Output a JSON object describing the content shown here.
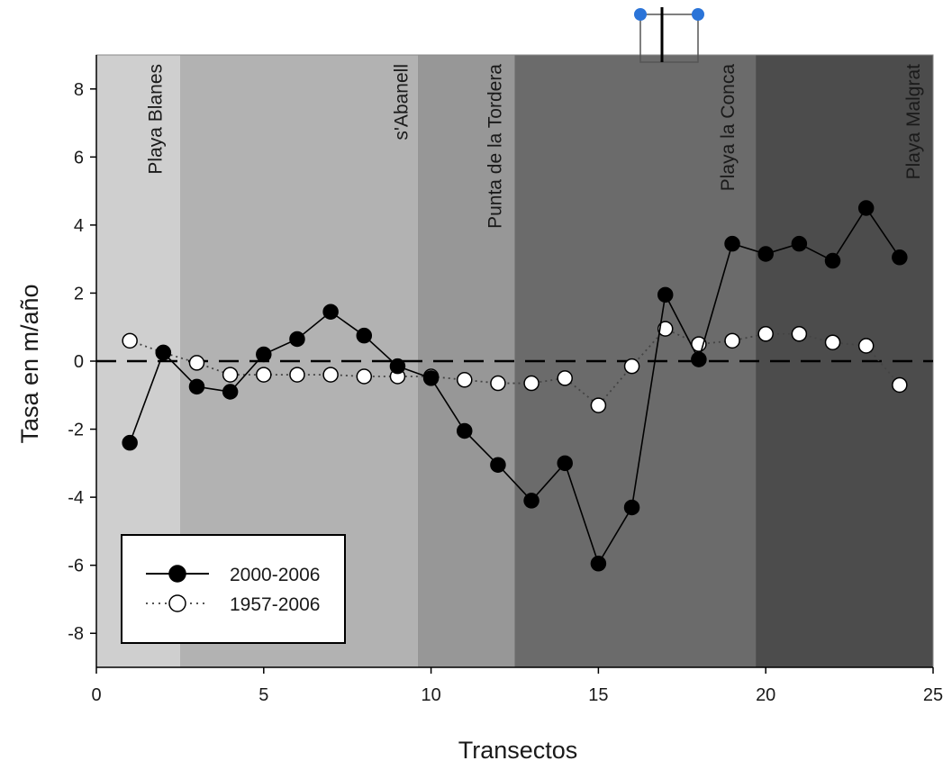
{
  "chart_data": {
    "type": "line",
    "xlabel": "Transectos",
    "ylabel": "Tasa en m/año",
    "xlim": [
      0,
      25
    ],
    "ylim": [
      -9,
      9
    ],
    "x_ticks": [
      0,
      5,
      10,
      15,
      20,
      25
    ],
    "y_ticks": [
      -8,
      -6,
      -4,
      -2,
      0,
      2,
      4,
      6,
      8
    ],
    "reference_line": {
      "y": 0,
      "style": "dashed"
    },
    "legend_position": "bottom-left",
    "zones": [
      {
        "label": "Playa Blanes",
        "from": 0,
        "to": 2.5,
        "color": "#cfcfcf"
      },
      {
        "label": "s'Abanell",
        "from": 2.5,
        "to": 9.6,
        "color": "#b2b2b2"
      },
      {
        "label": "Punta de la Tordera",
        "from": 9.6,
        "to": 12.5,
        "color": "#979797"
      },
      {
        "label": "Playa la Conca",
        "from": 12.5,
        "to": 19.7,
        "color": "#6b6b6b"
      },
      {
        "label": "Playa Malgrat",
        "from": 19.7,
        "to": 25,
        "color": "#4c4c4c"
      }
    ],
    "series": [
      {
        "name": "2000-2006",
        "marker": "filled-circle",
        "line": "solid",
        "x": [
          1,
          2,
          3,
          4,
          5,
          6,
          7,
          8,
          9,
          10,
          11,
          12,
          13,
          14,
          15,
          16,
          17,
          18,
          19,
          20,
          21,
          22,
          23,
          24
        ],
        "y": [
          -2.4,
          0.25,
          -0.75,
          -0.9,
          0.2,
          0.65,
          1.45,
          0.75,
          -0.15,
          -0.5,
          -2.05,
          -3.05,
          -4.1,
          -3.0,
          -5.95,
          -4.3,
          1.95,
          0.05,
          3.45,
          3.15,
          3.45,
          2.95,
          4.5,
          3.05
        ]
      },
      {
        "name": "1957-2006",
        "marker": "open-circle",
        "line": "dotted",
        "x": [
          1,
          2,
          3,
          4,
          5,
          6,
          7,
          8,
          9,
          10,
          11,
          12,
          13,
          14,
          15,
          16,
          17,
          18,
          19,
          20,
          21,
          22,
          23,
          24
        ],
        "y": [
          0.6,
          0.25,
          -0.05,
          -0.4,
          -0.4,
          -0.4,
          -0.4,
          -0.45,
          -0.45,
          -0.45,
          -0.55,
          -0.65,
          -0.65,
          -0.5,
          -1.3,
          -0.15,
          0.95,
          0.5,
          0.6,
          0.8,
          0.8,
          0.55,
          0.45,
          -0.7
        ]
      }
    ],
    "colors": {
      "series_filled": "#000000",
      "series_open_fill": "#ffffff",
      "handle": "#2b74d8"
    }
  }
}
